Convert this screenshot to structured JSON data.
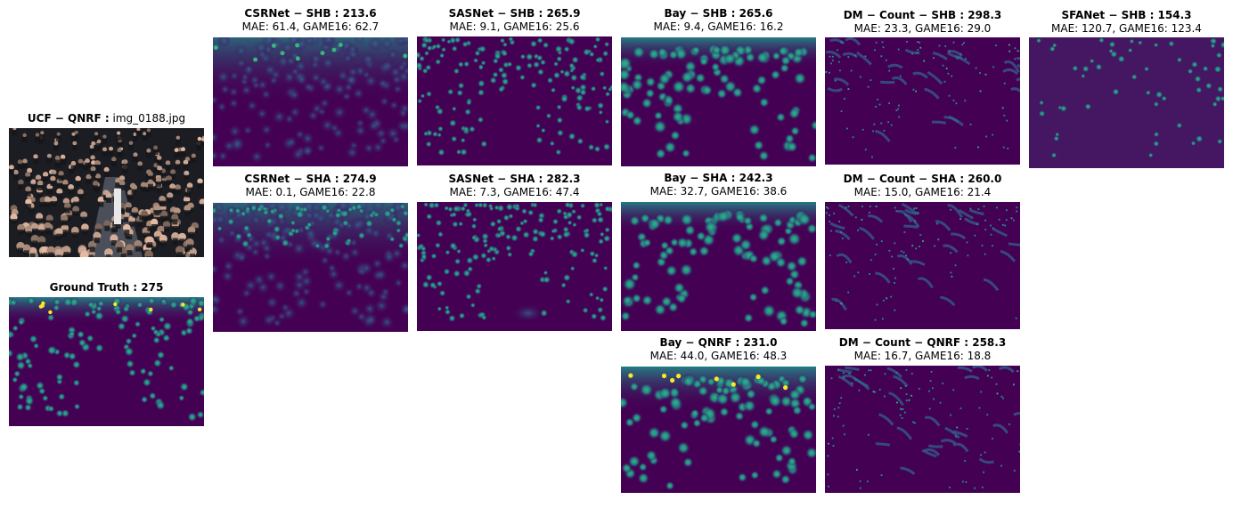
{
  "panels": [
    {
      "id": "src",
      "title_bold": "UCF − QNRF :",
      "title_rest": " img_0188.jpg",
      "subtitle": "",
      "kind": "photo"
    },
    {
      "id": "gt",
      "title_bold": "Ground Truth : 275",
      "title_rest": "",
      "subtitle": "",
      "kind": "gt"
    },
    {
      "id": "csr_shb",
      "title_bold": "CSRNet − SHB : 213.6",
      "title_rest": "",
      "subtitle": "MAE: 61.4, GAME16: 62.7",
      "kind": "blur"
    },
    {
      "id": "csr_sha",
      "title_bold": "CSRNet − SHA : 274.9",
      "title_rest": "",
      "subtitle": "MAE: 0.1, GAME16: 22.8",
      "kind": "blur2"
    },
    {
      "id": "sas_shb",
      "title_bold": "SASNet − SHB : 265.9",
      "title_rest": "",
      "subtitle": "MAE: 9.1, GAME16: 25.6",
      "kind": "dots"
    },
    {
      "id": "sas_sha",
      "title_bold": "SASNet − SHA : 282.3",
      "title_rest": "",
      "subtitle": "MAE: 7.3, GAME16: 47.4",
      "kind": "dots"
    },
    {
      "id": "bay_shb",
      "title_bold": "Bay − SHB : 265.6",
      "title_rest": "",
      "subtitle": "MAE: 9.4, GAME16: 16.2",
      "kind": "band"
    },
    {
      "id": "bay_sha",
      "title_bold": "Bay − SHA : 242.3",
      "title_rest": "",
      "subtitle": "MAE: 32.7, GAME16: 38.6",
      "kind": "band"
    },
    {
      "id": "bay_qnrf",
      "title_bold": "Bay − QNRF : 231.0",
      "title_rest": "",
      "subtitle": "MAE: 44.0, GAME16: 48.3",
      "kind": "band"
    },
    {
      "id": "dm_shb",
      "title_bold": "DM − Count − SHB : 298.3",
      "title_rest": "",
      "subtitle": "MAE: 23.3, GAME16: 29.0",
      "kind": "sparse"
    },
    {
      "id": "dm_sha",
      "title_bold": "DM − Count − SHA : 260.0",
      "title_rest": "",
      "subtitle": "MAE: 15.0, GAME16: 21.4",
      "kind": "sparse"
    },
    {
      "id": "dm_qnrf",
      "title_bold": "DM − Count − QNRF : 258.3",
      "title_rest": "",
      "subtitle": "MAE: 16.7, GAME16: 18.8",
      "kind": "sparse"
    },
    {
      "id": "sfa_shb",
      "title_bold": "SFANet − SHB : 154.3",
      "title_rest": "",
      "subtitle": "MAE: 120.7, GAME16: 123.4",
      "kind": "dots"
    }
  ],
  "colors": {
    "bg": "#440154",
    "mid": "#31688e",
    "teal": "#21918c",
    "green": "#35b779",
    "yellow": "#fde725"
  }
}
